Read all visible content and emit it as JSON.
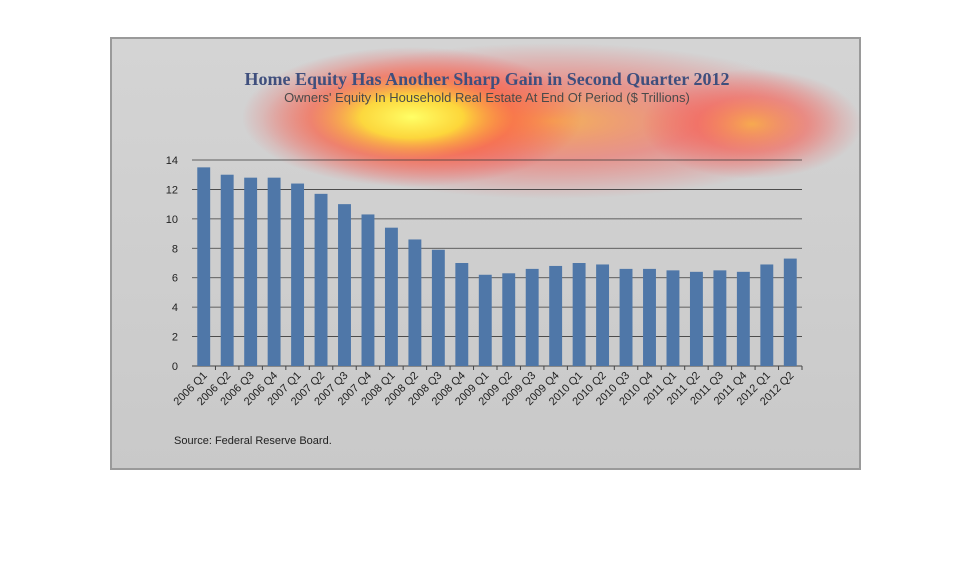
{
  "chart_data": {
    "type": "bar",
    "title": "Home Equity Has Another Sharp Gain in Second Quarter 2012",
    "subtitle": "Owners' Equity In Household Real Estate At End Of Period ($ Trillions)",
    "source": "Source:  Federal Reserve Board.",
    "categories": [
      "2006 Q1",
      "2006 Q2",
      "2006 Q3",
      "2006 Q4",
      "2007 Q1",
      "2007 Q2",
      "2007 Q3",
      "2007 Q4",
      "2008 Q1",
      "2008 Q2",
      "2008 Q3",
      "2008 Q4",
      "2009 Q1",
      "2009 Q2",
      "2009 Q3",
      "2009 Q4",
      "2010 Q1",
      "2010 Q2",
      "2010 Q3",
      "2010 Q4",
      "2011 Q1",
      "2011 Q2",
      "2011 Q3",
      "2011 Q4",
      "2012 Q1",
      "2012 Q2"
    ],
    "values": [
      13.5,
      13.0,
      12.8,
      12.8,
      12.4,
      11.7,
      11.0,
      10.3,
      9.4,
      8.6,
      7.9,
      7.0,
      6.2,
      6.3,
      6.6,
      6.8,
      7.0,
      6.9,
      6.6,
      6.6,
      6.5,
      6.4,
      6.5,
      6.4,
      6.9,
      7.3
    ],
    "yticks": [
      0,
      2,
      4,
      6,
      8,
      10,
      12,
      14
    ],
    "ylim": [
      0,
      14
    ],
    "grid": true,
    "bar_color": "#4f77a8"
  }
}
